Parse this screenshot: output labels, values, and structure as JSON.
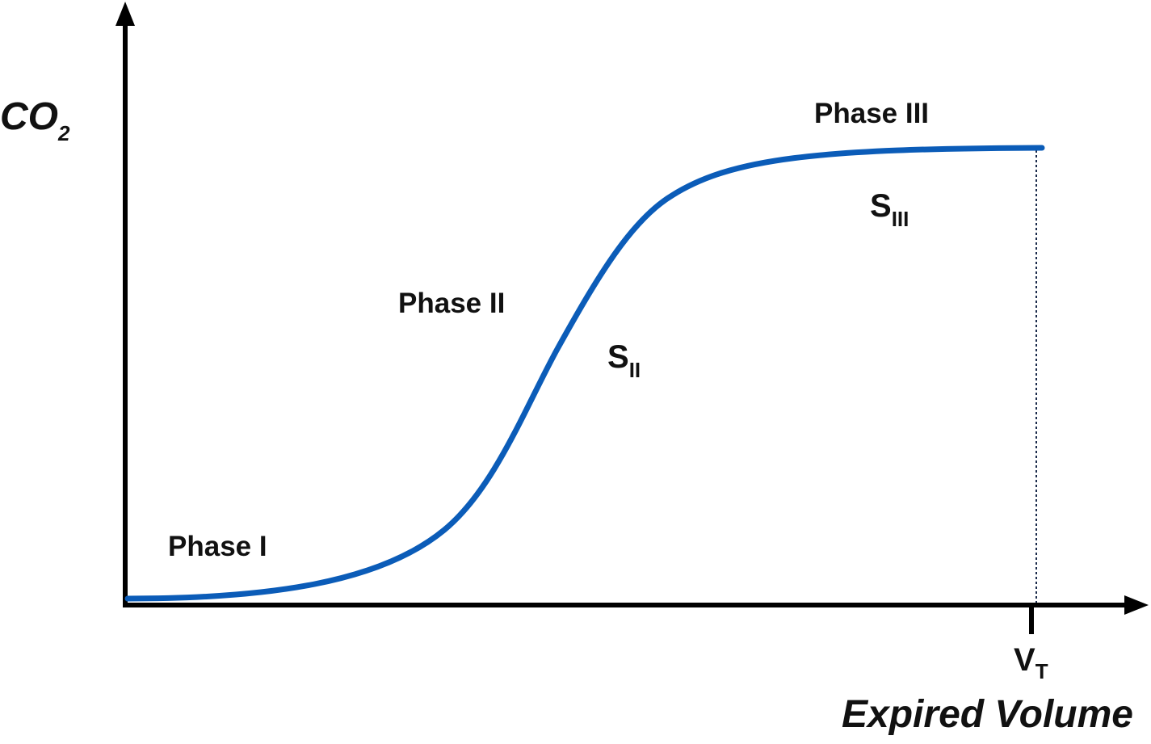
{
  "y_axis": {
    "label": {
      "main": "CO",
      "sub": "2"
    }
  },
  "x_axis": {
    "label": "Expired Volume",
    "tick": {
      "main": "V",
      "sub": "T"
    }
  },
  "phases": [
    "Phase I",
    "Phase II",
    "Phase III"
  ],
  "slopes": [
    {
      "main": "S",
      "sub": "II"
    },
    {
      "main": "S",
      "sub": "III"
    }
  ]
}
